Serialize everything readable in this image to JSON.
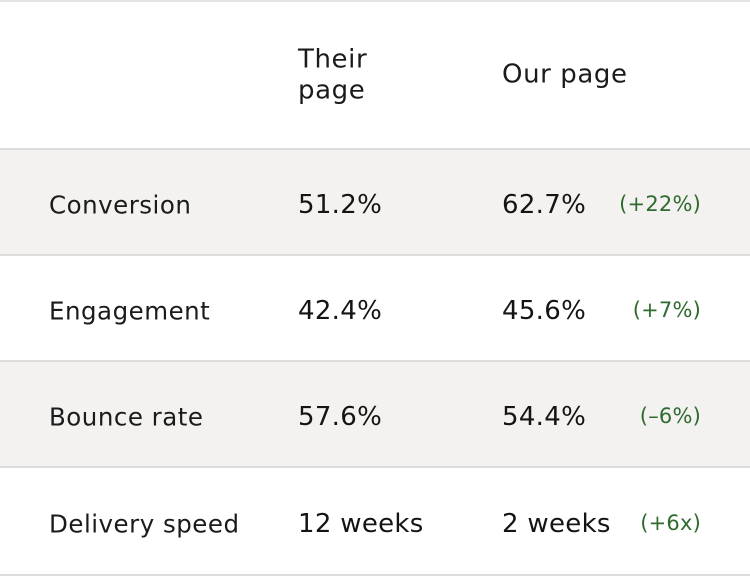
{
  "header": {
    "col_metric": "",
    "col_their": "Their page",
    "col_ours": "Our page"
  },
  "rows": [
    {
      "metric": "Conversion",
      "their": "51.2%",
      "ours": "62.7%",
      "delta": "(+22%)"
    },
    {
      "metric": "Engagement",
      "their": "42.4%",
      "ours": "45.6%",
      "delta": "(+7%)"
    },
    {
      "metric": "Bounce rate",
      "their": "57.6%",
      "ours": "54.4%",
      "delta": "(–6%)"
    },
    {
      "metric": "Delivery speed",
      "their": "12 weeks",
      "ours": "2 weeks",
      "delta": "(+6x)"
    }
  ],
  "colors": {
    "delta_text": "#2f6b2f",
    "shaded_row": "#f3f2f0",
    "divider": "#dcdcdc"
  }
}
